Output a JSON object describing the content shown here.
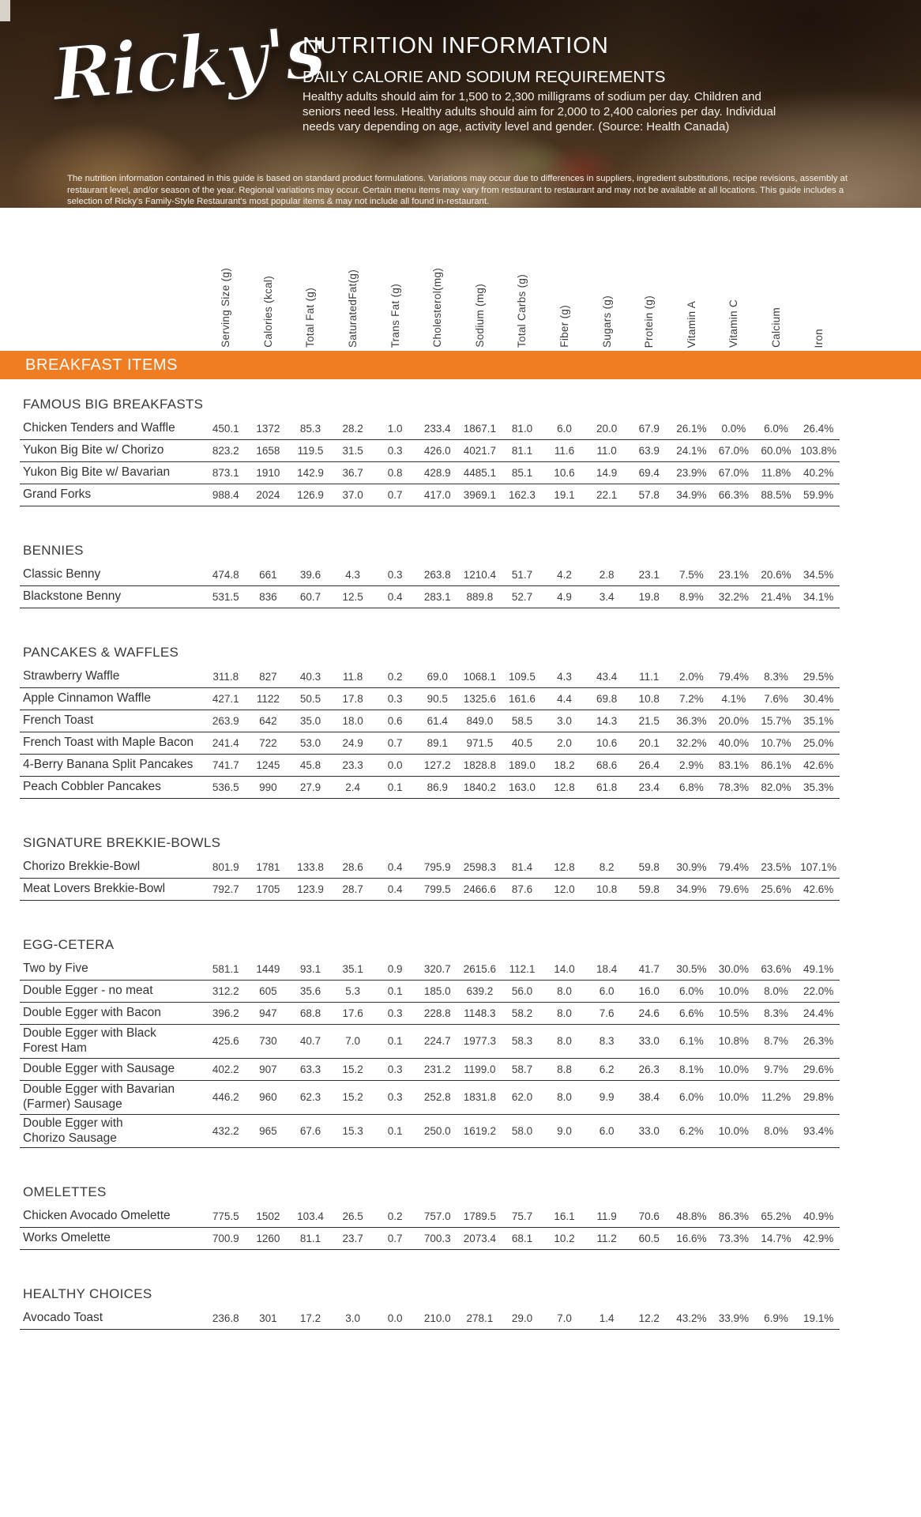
{
  "colors": {
    "accent": "#ef7d23"
  },
  "header": {
    "brand": "Ricky's",
    "title": "NUTRITION INFORMATION",
    "subtitle": "DAILY CALORIE AND SODIUM REQUIREMENTS",
    "body": "Healthy adults should aim for 1,500 to 2,300 milligrams of sodium per day. Children and seniors need less. Healthy adults should aim for 2,000 to 2,400 calories per day. Individual needs vary depending on age, activity level and gender. (Source: Health Canada)",
    "disclaimer": "The nutrition information contained in this guide is based on standard product formulations. Variations may occur due to differences in suppliers, ingredient substitutions, recipe revisions, assembly at restaurant level, and/or season of the year. Regional variations may occur. Certain menu items may vary from restaurant to restaurant and may not be available at all locations. This guide includes a selection of Ricky's Family-Style Restaurant's most popular items & may not include all found in-restaurant."
  },
  "banner": "BREAKFAST ITEMS",
  "columns": [
    "Serving Size (g)",
    "Calories (kcal)",
    "Total Fat (g)",
    "SaturatedFat(g)",
    "Trans Fat (g)",
    "Cholesterol(mg)",
    "Sodium (mg)",
    "Total Carbs (g)",
    "Fiber (g)",
    "Sugars (g)",
    "Protein (g)",
    "Vitamin A",
    "Vitamin C",
    "Calcium",
    "Iron"
  ],
  "sections": [
    {
      "title": "FAMOUS BIG BREAKFASTS",
      "items": [
        {
          "name": "Chicken Tenders and Waffle",
          "values": [
            "450.1",
            "1372",
            "85.3",
            "28.2",
            "1.0",
            "233.4",
            "1867.1",
            "81.0",
            "6.0",
            "20.0",
            "67.9",
            "26.1%",
            "0.0%",
            "6.0%",
            "26.4%"
          ]
        },
        {
          "name": "Yukon Big Bite w/ Chorizo",
          "values": [
            "823.2",
            "1658",
            "119.5",
            "31.5",
            "0.3",
            "426.0",
            "4021.7",
            "81.1",
            "11.6",
            "11.0",
            "63.9",
            "24.1%",
            "67.0%",
            "60.0%",
            "103.8%"
          ]
        },
        {
          "name": "Yukon Big Bite w/ Bavarian",
          "values": [
            "873.1",
            "1910",
            "142.9",
            "36.7",
            "0.8",
            "428.9",
            "4485.1",
            "85.1",
            "10.6",
            "14.9",
            "69.4",
            "23.9%",
            "67.0%",
            "11.8%",
            "40.2%"
          ]
        },
        {
          "name": "Grand Forks",
          "values": [
            "988.4",
            "2024",
            "126.9",
            "37.0",
            "0.7",
            "417.0",
            "3969.1",
            "162.3",
            "19.1",
            "22.1",
            "57.8",
            "34.9%",
            "66.3%",
            "88.5%",
            "59.9%"
          ]
        }
      ]
    },
    {
      "title": "BENNIES",
      "items": [
        {
          "name": "Classic Benny",
          "values": [
            "474.8",
            "661",
            "39.6",
            "4.3",
            "0.3",
            "263.8",
            "1210.4",
            "51.7",
            "4.2",
            "2.8",
            "23.1",
            "7.5%",
            "23.1%",
            "20.6%",
            "34.5%"
          ]
        },
        {
          "name": "Blackstone Benny",
          "values": [
            "531.5",
            "836",
            "60.7",
            "12.5",
            "0.4",
            "283.1",
            "889.8",
            "52.7",
            "4.9",
            "3.4",
            "19.8",
            "8.9%",
            "32.2%",
            "21.4%",
            "34.1%"
          ]
        }
      ]
    },
    {
      "title": "PANCAKES & WAFFLES",
      "items": [
        {
          "name": "Strawberry Waffle",
          "values": [
            "311.8",
            "827",
            "40.3",
            "11.8",
            "0.2",
            "69.0",
            "1068.1",
            "109.5",
            "4.3",
            "43.4",
            "11.1",
            "2.0%",
            "79.4%",
            "8.3%",
            "29.5%"
          ]
        },
        {
          "name": "Apple Cinnamon Waffle",
          "values": [
            "427.1",
            "1122",
            "50.5",
            "17.8",
            "0.3",
            "90.5",
            "1325.6",
            "161.6",
            "4.4",
            "69.8",
            "10.8",
            "7.2%",
            "4.1%",
            "7.6%",
            "30.4%"
          ]
        },
        {
          "name": "French Toast",
          "values": [
            "263.9",
            "642",
            "35.0",
            "18.0",
            "0.6",
            "61.4",
            "849.0",
            "58.5",
            "3.0",
            "14.3",
            "21.5",
            "36.3%",
            "20.0%",
            "15.7%",
            "35.1%"
          ]
        },
        {
          "name": "French Toast with Maple Bacon",
          "values": [
            "241.4",
            "722",
            "53.0",
            "24.9",
            "0.7",
            "89.1",
            "971.5",
            "40.5",
            "2.0",
            "10.6",
            "20.1",
            "32.2%",
            "40.0%",
            "10.7%",
            "25.0%"
          ]
        },
        {
          "name": "4-Berry Banana Split Pancakes",
          "values": [
            "741.7",
            "1245",
            "45.8",
            "23.3",
            "0.0",
            "127.2",
            "1828.8",
            "189.0",
            "18.2",
            "68.6",
            "26.4",
            "2.9%",
            "83.1%",
            "86.1%",
            "42.6%"
          ]
        },
        {
          "name": "Peach Cobbler Pancakes",
          "values": [
            "536.5",
            "990",
            "27.9",
            "2.4",
            "0.1",
            "86.9",
            "1840.2",
            "163.0",
            "12.8",
            "61.8",
            "23.4",
            "6.8%",
            "78.3%",
            "82.0%",
            "35.3%"
          ]
        }
      ]
    },
    {
      "title": "SIGNATURE BREKKIE-BOWLS",
      "items": [
        {
          "name": "Chorizo Brekkie-Bowl",
          "values": [
            "801.9",
            "1781",
            "133.8",
            "28.6",
            "0.4",
            "795.9",
            "2598.3",
            "81.4",
            "12.8",
            "8.2",
            "59.8",
            "30.9%",
            "79.4%",
            "23.5%",
            "107.1%"
          ]
        },
        {
          "name": "Meat Lovers Brekkie-Bowl",
          "values": [
            "792.7",
            "1705",
            "123.9",
            "28.7",
            "0.4",
            "799.5",
            "2466.6",
            "87.6",
            "12.0",
            "10.8",
            "59.8",
            "34.9%",
            "79.6%",
            "25.6%",
            "42.6%"
          ]
        }
      ]
    },
    {
      "title": "EGG-CETERA",
      "items": [
        {
          "name": "Two by Five",
          "values": [
            "581.1",
            "1449",
            "93.1",
            "35.1",
            "0.9",
            "320.7",
            "2615.6",
            "112.1",
            "14.0",
            "18.4",
            "41.7",
            "30.5%",
            "30.0%",
            "63.6%",
            "49.1%"
          ]
        },
        {
          "name": "Double Egger - no meat",
          "values": [
            "312.2",
            "605",
            "35.6",
            "5.3",
            "0.1",
            "185.0",
            "639.2",
            "56.0",
            "8.0",
            "6.0",
            "16.0",
            "6.0%",
            "10.0%",
            "8.0%",
            "22.0%"
          ]
        },
        {
          "name": "Double Egger with Bacon",
          "values": [
            "396.2",
            "947",
            "68.8",
            "17.6",
            "0.3",
            "228.8",
            "1148.3",
            "58.2",
            "8.0",
            "7.6",
            "24.6",
            "6.6%",
            "10.5%",
            "8.3%",
            "24.4%"
          ]
        },
        {
          "name": "Double Egger with Black\nForest Ham",
          "values": [
            "425.6",
            "730",
            "40.7",
            "7.0",
            "0.1",
            "224.7",
            "1977.3",
            "58.3",
            "8.0",
            "8.3",
            "33.0",
            "6.1%",
            "10.8%",
            "8.7%",
            "26.3%"
          ]
        },
        {
          "name": "Double Egger with Sausage",
          "values": [
            "402.2",
            "907",
            "63.3",
            "15.2",
            "0.3",
            "231.2",
            "1199.0",
            "58.7",
            "8.8",
            "6.2",
            "26.3",
            "8.1%",
            "10.0%",
            "9.7%",
            "29.6%"
          ]
        },
        {
          "name": "Double Egger with Bavarian\n(Farmer) Sausage",
          "values": [
            "446.2",
            "960",
            "62.3",
            "15.2",
            "0.3",
            "252.8",
            "1831.8",
            "62.0",
            "8.0",
            "9.9",
            "38.4",
            "6.0%",
            "10.0%",
            "11.2%",
            "29.8%"
          ]
        },
        {
          "name": "Double Egger with\nChorizo Sausage",
          "values": [
            "432.2",
            "965",
            "67.6",
            "15.3",
            "0.1",
            "250.0",
            "1619.2",
            "58.0",
            "9.0",
            "6.0",
            "33.0",
            "6.2%",
            "10.0%",
            "8.0%",
            "93.4%"
          ]
        }
      ]
    },
    {
      "title": "OMELETTES",
      "items": [
        {
          "name": "Chicken Avocado Omelette",
          "values": [
            "775.5",
            "1502",
            "103.4",
            "26.5",
            "0.2",
            "757.0",
            "1789.5",
            "75.7",
            "16.1",
            "11.9",
            "70.6",
            "48.8%",
            "86.3%",
            "65.2%",
            "40.9%"
          ]
        },
        {
          "name": "Works Omelette",
          "values": [
            "700.9",
            "1260",
            "81.1",
            "23.7",
            "0.7",
            "700.3",
            "2073.4",
            "68.1",
            "10.2",
            "11.2",
            "60.5",
            "16.6%",
            "73.3%",
            "14.7%",
            "42.9%"
          ]
        }
      ]
    },
    {
      "title": "HEALTHY CHOICES",
      "items": [
        {
          "name": "Avocado Toast",
          "values": [
            "236.8",
            "301",
            "17.2",
            "3.0",
            "0.0",
            "210.0",
            "278.1",
            "29.0",
            "7.0",
            "1.4",
            "12.2",
            "43.2%",
            "33.9%",
            "6.9%",
            "19.1%"
          ]
        }
      ]
    }
  ]
}
